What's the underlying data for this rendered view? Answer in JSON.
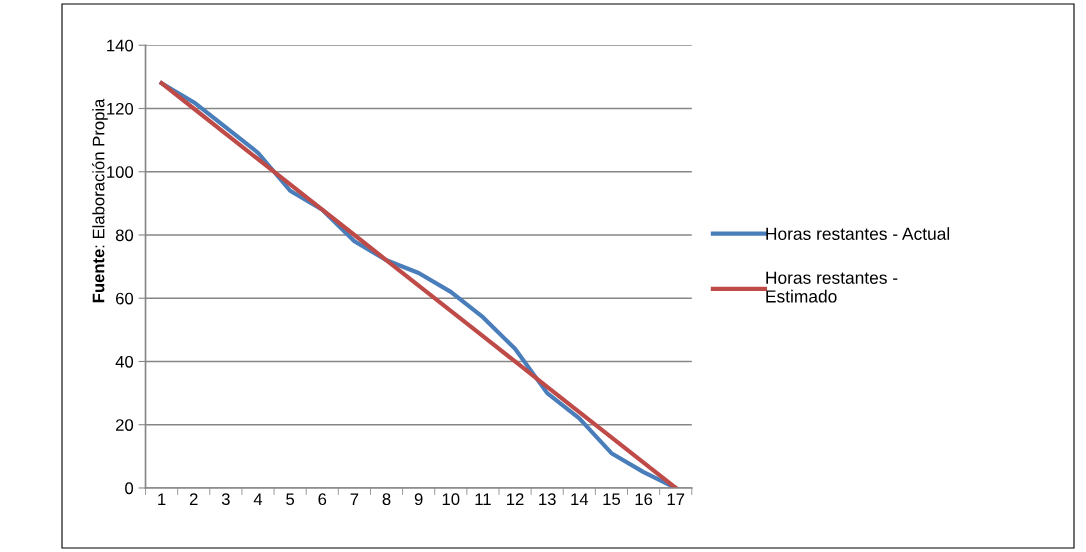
{
  "chart_data": {
    "type": "line",
    "categories": [
      "1",
      "2",
      "3",
      "4",
      "5",
      "6",
      "7",
      "8",
      "9",
      "10",
      "11",
      "12",
      "13",
      "14",
      "15",
      "16",
      "17"
    ],
    "series": [
      {
        "name": "Horas restantes - Actual",
        "color": "#4a7ebb",
        "values": [
          128,
          122,
          114,
          106,
          94,
          88,
          78,
          72,
          68,
          62,
          54,
          44,
          30,
          22,
          11,
          5,
          0
        ]
      },
      {
        "name": "Horas restantes - Estimado",
        "color": "#be4b48",
        "values": [
          128,
          120,
          112,
          104,
          96,
          88,
          80,
          72,
          64,
          56,
          48,
          40,
          32,
          24,
          16,
          8,
          0
        ]
      }
    ],
    "ylim": [
      0,
      140
    ],
    "yticks": [
      0,
      20,
      40,
      60,
      80,
      100,
      120,
      140
    ],
    "grid": "y",
    "legend": "right",
    "marker": "none",
    "line_style": "solid",
    "annotations": [
      "Fuente: Elaboración Propia"
    ]
  }
}
